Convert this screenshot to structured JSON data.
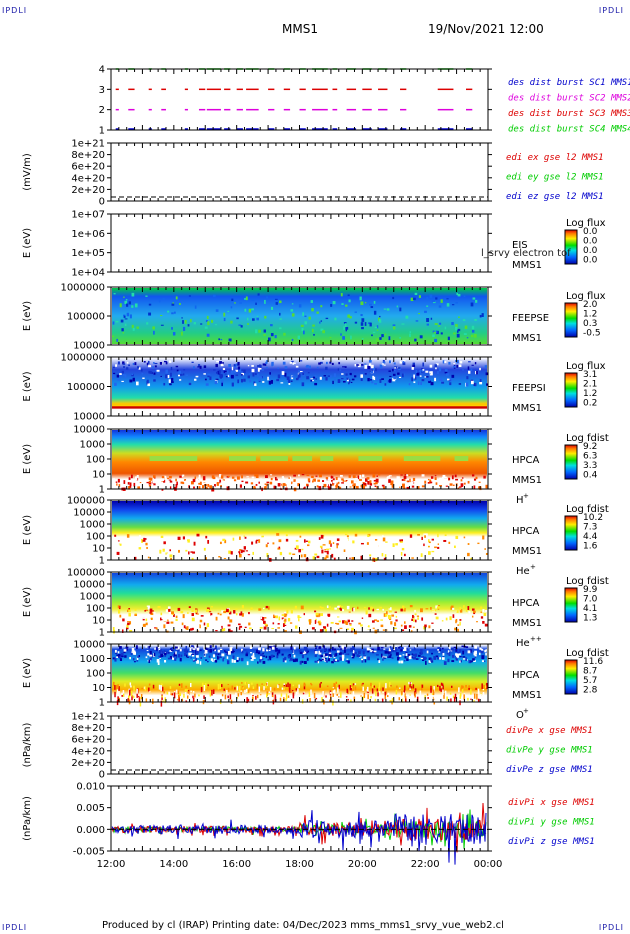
{
  "header": {
    "left_tag": "IPDLI",
    "right_tag": "IPDLI",
    "spacecraft": "MMS1",
    "datetime": "19/Nov/2021 12:00"
  },
  "footer": {
    "left_tag": "IPDLI",
    "right_tag": "IPDLI",
    "text": "Produced by cl (IRAP)   Printing date: 04/Dec/2023   mms_mms1_srvy_vue_web2.cl"
  },
  "colors": {
    "blue": "#0000cc",
    "red": "#dd0000",
    "green": "#00cc00",
    "magenta": "#dd00dd"
  },
  "chart_data": [
    {
      "type": "line",
      "id": "burst",
      "x": [
        "12:00",
        "14:00",
        "16:00",
        "18:00",
        "20:00",
        "22:00",
        "00:00"
      ],
      "y_ticks": [
        "1",
        "2",
        "3",
        "4"
      ],
      "ylabel": "",
      "series": [
        {
          "name": "des dist burst SC1 MMS1",
          "color": "#0000cc",
          "level": 1
        },
        {
          "name": "des dist burst SC2 MMS2",
          "color": "#dd00dd",
          "level": 2
        },
        {
          "name": "des dist burst SC3 MMS3",
          "color": "#dd0000",
          "level": 3
        },
        {
          "name": "des dist burst SC4 MMS4",
          "color": "#00cc00",
          "level": 4
        }
      ],
      "intervals_hours": [
        [
          0.15,
          0.25
        ],
        [
          0.55,
          0.75
        ],
        [
          1.2,
          1.3
        ],
        [
          1.6,
          1.75
        ],
        [
          2.35,
          2.45
        ],
        [
          2.8,
          3.0
        ],
        [
          3.05,
          3.5
        ],
        [
          3.6,
          3.8
        ],
        [
          4.0,
          4.2
        ],
        [
          4.3,
          4.7
        ],
        [
          5.0,
          5.2
        ],
        [
          5.5,
          5.7
        ],
        [
          6.0,
          6.2
        ],
        [
          6.4,
          6.9
        ],
        [
          7.05,
          7.2
        ],
        [
          7.5,
          7.8
        ],
        [
          8.0,
          8.3
        ],
        [
          8.5,
          8.8
        ],
        [
          9.2,
          9.4
        ],
        [
          10.4,
          10.9
        ],
        [
          11.3,
          11.5
        ]
      ]
    },
    {
      "type": "line",
      "id": "edi",
      "y_ticks": [
        "0",
        "2e+20",
        "4e+20",
        "6e+20",
        "8e+20",
        "1e+21"
      ],
      "ylabel": "(mV/m)",
      "series": [
        {
          "name": "edi ex gse l2 MMS1",
          "color": "#dd0000"
        },
        {
          "name": "edi ey gse l2 MMS1",
          "color": "#00cc00"
        },
        {
          "name": "edi ez gse l2 MMS1",
          "color": "#0000cc"
        }
      ]
    },
    {
      "type": "heatmap",
      "id": "eis",
      "y_ticks": [
        "1e+04",
        "1e+05",
        "1e+06",
        "1e+07"
      ],
      "ylabel": "E (eV)",
      "labels": [
        "EIS",
        "MMS1"
      ],
      "overlay_text": "l_srvy electron tof",
      "colorbar": {
        "title": "Log flux",
        "ticks": [
          "0.0",
          "0.0",
          "0.0",
          "0.0"
        ]
      }
    },
    {
      "type": "heatmap",
      "id": "feepse",
      "y_ticks": [
        "10000",
        "100000",
        "1000000"
      ],
      "ylabel": "E (eV)",
      "labels": [
        "FEEPSE",
        "MMS1"
      ],
      "colorbar": {
        "title": "Log flux",
        "ticks": [
          "2.0",
          "1.2",
          "0.3",
          "-0.5"
        ]
      }
    },
    {
      "type": "heatmap",
      "id": "feepsi",
      "y_ticks": [
        "10000",
        "100000",
        "1000000"
      ],
      "ylabel": "E (eV)",
      "labels": [
        "FEEPSI",
        "MMS1"
      ],
      "colorbar": {
        "title": "Log flux",
        "ticks": [
          "3.1",
          "2.1",
          "1.2",
          "0.2"
        ]
      }
    },
    {
      "type": "heatmap",
      "id": "hpca_h",
      "y_ticks": [
        "1",
        "10",
        "100",
        "1000",
        "10000"
      ],
      "ylabel": "E (eV)",
      "labels": [
        "HPCA",
        "MMS1"
      ],
      "species": [
        "H",
        "+"
      ],
      "colorbar": {
        "title": "Log fdist",
        "ticks": [
          "9.2",
          "6.3",
          "3.3",
          "0.4"
        ]
      }
    },
    {
      "type": "heatmap",
      "id": "hpca_he1",
      "y_ticks": [
        "1",
        "10",
        "100",
        "1000",
        "10000",
        "100000"
      ],
      "ylabel": "E (eV)",
      "labels": [
        "HPCA",
        "MMS1"
      ],
      "species": [
        "He",
        "+"
      ],
      "colorbar": {
        "title": "Log fdist",
        "ticks": [
          "10.2",
          "7.3",
          "4.4",
          "1.6"
        ]
      }
    },
    {
      "type": "heatmap",
      "id": "hpca_he2",
      "y_ticks": [
        "1",
        "10",
        "100",
        "1000",
        "10000",
        "100000"
      ],
      "ylabel": "E (eV)",
      "labels": [
        "HPCA",
        "MMS1"
      ],
      "species": [
        "He",
        "++"
      ],
      "colorbar": {
        "title": "Log fdist",
        "ticks": [
          "9.9",
          "7.0",
          "4.1",
          "1.3"
        ]
      }
    },
    {
      "type": "heatmap",
      "id": "hpca_o",
      "y_ticks": [
        "1",
        "10",
        "100",
        "1000",
        "10000"
      ],
      "ylabel": "E (eV)",
      "labels": [
        "HPCA",
        "MMS1"
      ],
      "species": [
        "O",
        "+"
      ],
      "colorbar": {
        "title": "Log fdist",
        "ticks": [
          "11.6",
          "8.7",
          "5.7",
          "2.8"
        ]
      }
    },
    {
      "type": "line",
      "id": "divpe",
      "y_ticks": [
        "0",
        "2e+20",
        "4e+20",
        "6e+20",
        "8e+20",
        "1e+21"
      ],
      "ylabel": "(nPa/km)",
      "series": [
        {
          "name": "divPe x gse MMS1",
          "color": "#dd0000"
        },
        {
          "name": "divPe y gse MMS1",
          "color": "#00cc00"
        },
        {
          "name": "divPe z gse MMS1",
          "color": "#0000cc"
        }
      ]
    },
    {
      "type": "line",
      "id": "divpi",
      "y_ticks": [
        "-0.005",
        "0.000",
        "0.005",
        "0.010"
      ],
      "ylabel": "(nPa/km)",
      "x_ticks": [
        "12:00",
        "14:00",
        "16:00",
        "18:00",
        "20:00",
        "22:00",
        "00:00"
      ],
      "series": [
        {
          "name": "divPi x gse MMS1",
          "color": "#dd0000"
        },
        {
          "name": "divPi y gse MMS1",
          "color": "#00cc00"
        },
        {
          "name": "divPi z gse MMS1",
          "color": "#0000cc"
        }
      ]
    }
  ]
}
